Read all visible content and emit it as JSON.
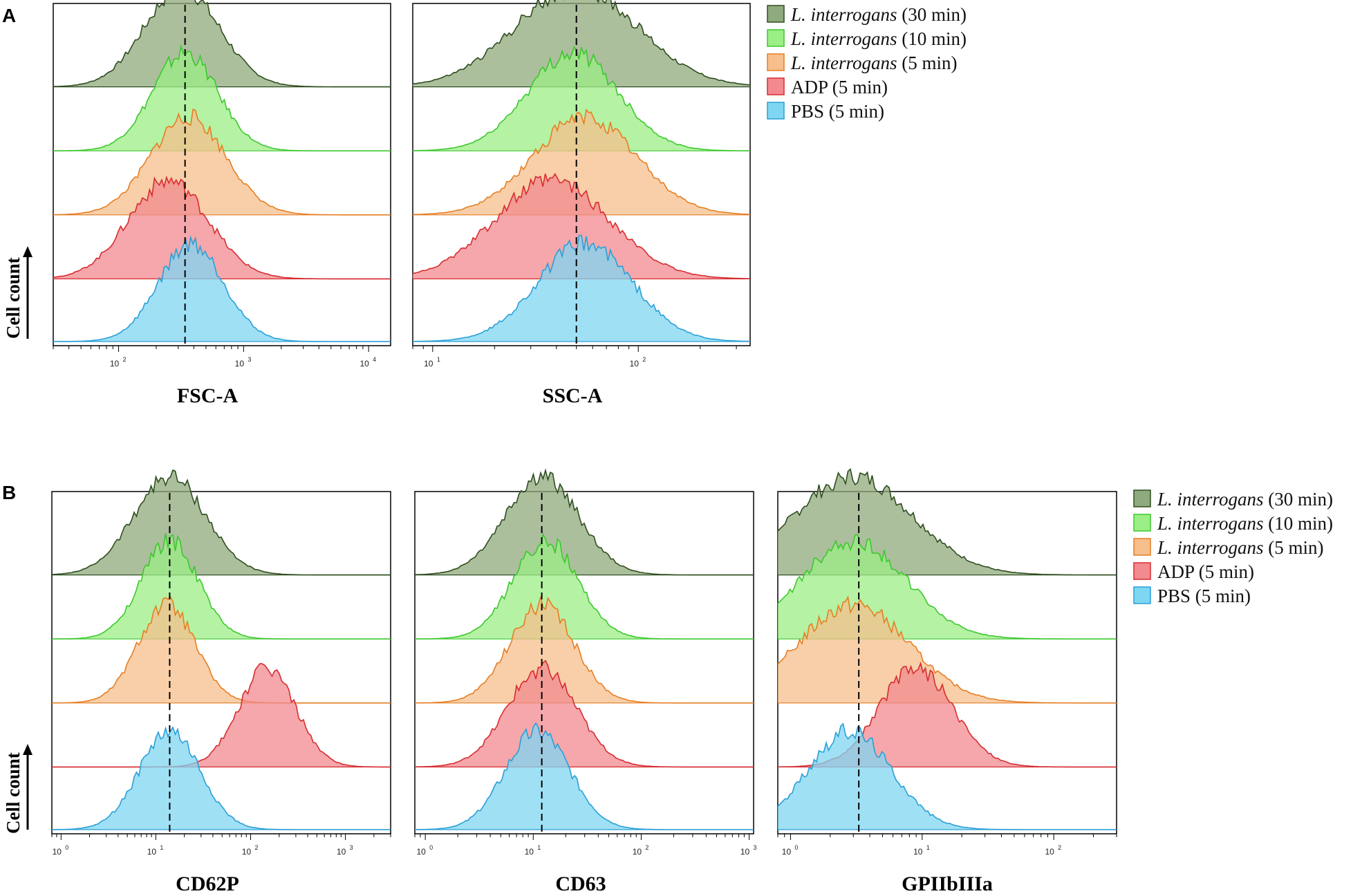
{
  "figure": {
    "ylabel": "Cell count",
    "series_colors": {
      "L. interrogans (30 min)": {
        "fill": "#8faa7c",
        "stroke": "#2f4d1f"
      },
      "L. interrogans (10 min)": {
        "fill": "#9cee86",
        "stroke": "#3cc82d"
      },
      "L. interrogans (5 min)": {
        "fill": "#f6bf8c",
        "stroke": "#e67e22"
      },
      "ADP (5 min)": {
        "fill": "#f28a8f",
        "stroke": "#d62c30"
      },
      "PBS (5 min)": {
        "fill": "#7fd6f2",
        "stroke": "#2a9fd6"
      }
    }
  },
  "panels": [
    {
      "letter": "A",
      "legend": [
        {
          "italic": "L. interrogans",
          "rest": " (30 min)"
        },
        {
          "italic": "L. interrogans",
          "rest": " (10 min)"
        },
        {
          "italic": "L. interrogans",
          "rest": " (5 min)"
        },
        {
          "italic": "",
          "rest": "ADP (5 min)"
        },
        {
          "italic": "",
          "rest": "PBS (5 min)"
        }
      ]
    },
    {
      "letter": "B",
      "legend": [
        {
          "italic": "L. interrogans",
          "rest": " (30 min)"
        },
        {
          "italic": "L. interrogans",
          "rest": " (10 min)"
        },
        {
          "italic": "L. interrogans",
          "rest": " (5 min)"
        },
        {
          "italic": "",
          "rest": "ADP (5 min)"
        },
        {
          "italic": "",
          "rest": "PBS (5 min)"
        }
      ]
    }
  ],
  "chart_data": [
    {
      "type": "histogram-overlay",
      "panel": "A",
      "title": "",
      "xlabel": "FSC-A",
      "ylabel": "Cell count",
      "x_scale": "log",
      "xlim": [
        30,
        15000
      ],
      "tick_labels": [
        {
          "base": "10",
          "exp": "2",
          "value": 100
        },
        {
          "base": "10",
          "exp": "3",
          "value": 1000
        },
        {
          "base": "10",
          "exp": "4",
          "value": 10000
        }
      ],
      "reference_line": 340,
      "series": [
        {
          "name": "L. interrogans (30 min)",
          "peak": 320,
          "width": 0.3
        },
        {
          "name": "L. interrogans (10 min)",
          "peak": 340,
          "width": 0.26
        },
        {
          "name": "L. interrogans (5 min)",
          "peak": 360,
          "width": 0.3
        },
        {
          "name": "ADP (5 min)",
          "peak": 250,
          "width": 0.32
        },
        {
          "name": "PBS (5 min)",
          "peak": 380,
          "width": 0.26
        }
      ]
    },
    {
      "type": "histogram-overlay",
      "panel": "A",
      "title": "",
      "xlabel": "SSC-A",
      "ylabel": "Cell count",
      "x_scale": "log",
      "xlim": [
        8,
        350
      ],
      "tick_labels": [
        {
          "base": "10",
          "exp": "1",
          "value": 10
        },
        {
          "base": "10",
          "exp": "2",
          "value": 100
        }
      ],
      "reference_line": 50,
      "series": [
        {
          "name": "L. interrogans (30 min)",
          "peak": 50,
          "width": 0.3
        },
        {
          "name": "L. interrogans (10 min)",
          "peak": 48,
          "width": 0.22
        },
        {
          "name": "L. interrogans (5 min)",
          "peak": 55,
          "width": 0.25
        },
        {
          "name": "ADP (5 min)",
          "peak": 38,
          "width": 0.28
        },
        {
          "name": "PBS (5 min)",
          "peak": 55,
          "width": 0.23
        }
      ]
    },
    {
      "type": "histogram-overlay",
      "panel": "B",
      "title": "",
      "xlabel": "CD62P",
      "ylabel": "Cell count",
      "x_scale": "log",
      "xlim": [
        0.8,
        3000
      ],
      "tick_labels": [
        {
          "base": "10",
          "exp": "0",
          "value": 1
        },
        {
          "base": "10",
          "exp": "1",
          "value": 10
        },
        {
          "base": "10",
          "exp": "2",
          "value": 100
        },
        {
          "base": "10",
          "exp": "3",
          "value": 1000
        }
      ],
      "reference_line": 14,
      "series": [
        {
          "name": "L. interrogans (30 min)",
          "peak": 14,
          "width": 0.38
        },
        {
          "name": "L. interrogans (10 min)",
          "peak": 14,
          "width": 0.3
        },
        {
          "name": "L. interrogans (5 min)",
          "peak": 13,
          "width": 0.3
        },
        {
          "name": "ADP (5 min)",
          "peak": 150,
          "width": 0.3
        },
        {
          "name": "PBS (5 min)",
          "peak": 14,
          "width": 0.32
        }
      ]
    },
    {
      "type": "histogram-overlay",
      "panel": "B",
      "title": "",
      "xlabel": "CD63",
      "ylabel": "Cell count",
      "x_scale": "log",
      "xlim": [
        0.8,
        1100
      ],
      "tick_labels": [
        {
          "base": "10",
          "exp": "0",
          "value": 1
        },
        {
          "base": "10",
          "exp": "1",
          "value": 10
        },
        {
          "base": "10",
          "exp": "2",
          "value": 100
        },
        {
          "base": "10",
          "exp": "3",
          "value": 1000
        }
      ],
      "reference_line": 12,
      "series": [
        {
          "name": "L. interrogans (30 min)",
          "peak": 12,
          "width": 0.34
        },
        {
          "name": "L. interrogans (10 min)",
          "peak": 13,
          "width": 0.3
        },
        {
          "name": "L. interrogans (5 min)",
          "peak": 12,
          "width": 0.3
        },
        {
          "name": "ADP (5 min)",
          "peak": 12,
          "width": 0.32
        },
        {
          "name": "PBS (5 min)",
          "peak": 11,
          "width": 0.3
        }
      ]
    },
    {
      "type": "histogram-overlay",
      "panel": "B",
      "title": "",
      "xlabel": "GPIIbIIIa",
      "ylabel": "Cell count",
      "x_scale": "log",
      "xlim": [
        0.8,
        300
      ],
      "tick_labels": [
        {
          "base": "10",
          "exp": "0",
          "value": 1
        },
        {
          "base": "10",
          "exp": "1",
          "value": 10
        },
        {
          "base": "10",
          "exp": "2",
          "value": 100
        }
      ],
      "reference_line": 3.3,
      "series": [
        {
          "name": "L. interrogans (30 min)",
          "peak": 3,
          "width": 0.45
        },
        {
          "name": "L. interrogans (10 min)",
          "peak": 3,
          "width": 0.4
        },
        {
          "name": "L. interrogans (5 min)",
          "peak": 3,
          "width": 0.42
        },
        {
          "name": "ADP (5 min)",
          "peak": 9,
          "width": 0.28
        },
        {
          "name": "PBS (5 min)",
          "peak": 2.8,
          "width": 0.32
        }
      ]
    }
  ]
}
